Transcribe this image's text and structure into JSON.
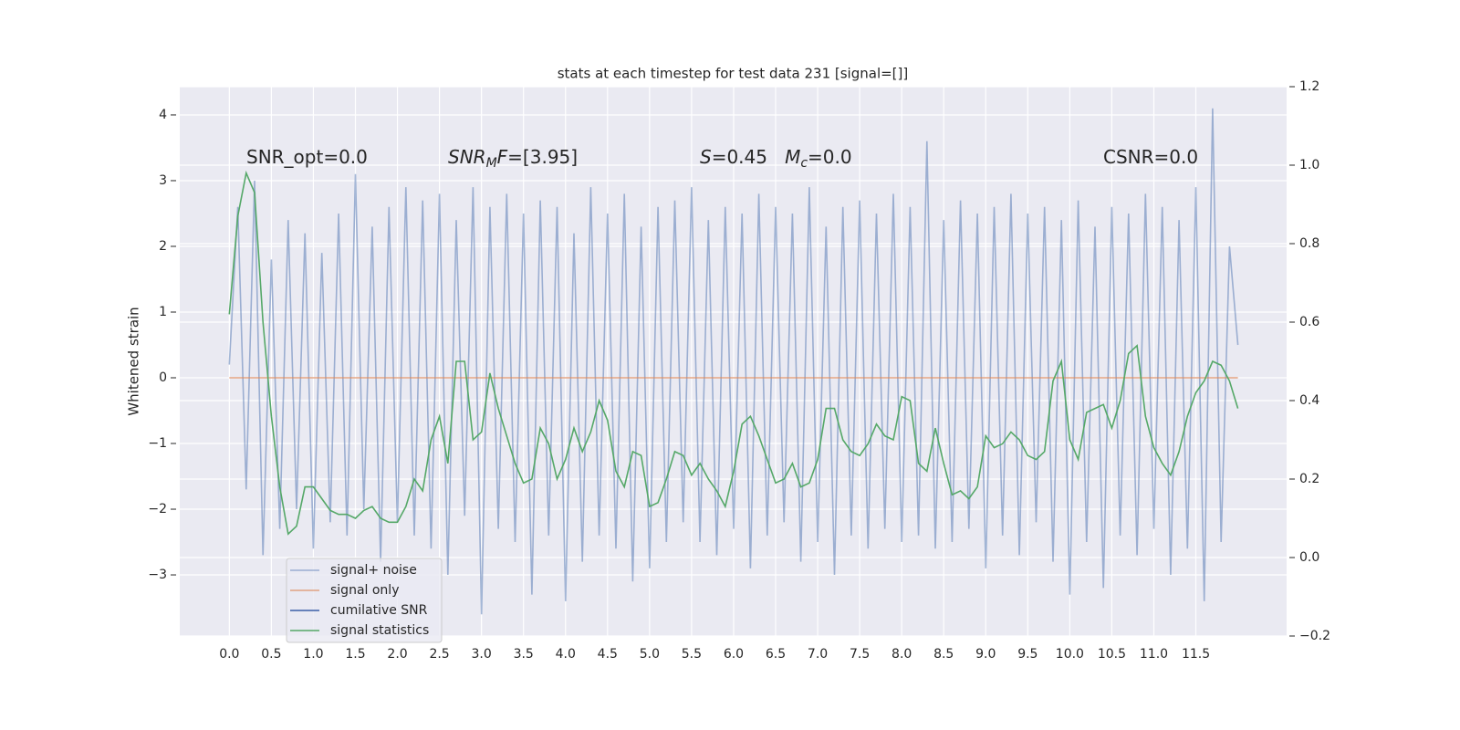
{
  "chart_data": {
    "type": "line",
    "title": "stats at each timestep for test data 231 [signal=[]]",
    "y_label": "Whitened strain",
    "x": [
      0.0,
      0.1,
      0.2,
      0.3,
      0.4,
      0.5,
      0.6,
      0.7,
      0.8,
      0.9,
      1.0,
      1.1,
      1.2,
      1.3,
      1.4,
      1.5,
      1.6,
      1.7,
      1.8,
      1.9,
      2.0,
      2.1,
      2.2,
      2.3,
      2.4,
      2.5,
      2.6,
      2.7,
      2.8,
      2.9,
      3.0,
      3.1,
      3.2,
      3.3,
      3.4,
      3.5,
      3.6,
      3.7,
      3.8,
      3.9,
      4.0,
      4.1,
      4.2,
      4.3,
      4.4,
      4.5,
      4.6,
      4.7,
      4.8,
      4.9,
      5.0,
      5.1,
      5.2,
      5.3,
      5.4,
      5.5,
      5.6,
      5.7,
      5.8,
      5.9,
      6.0,
      6.1,
      6.2,
      6.3,
      6.4,
      6.5,
      6.6,
      6.7,
      6.8,
      6.9,
      7.0,
      7.1,
      7.2,
      7.3,
      7.4,
      7.5,
      7.6,
      7.7,
      7.8,
      7.9,
      8.0,
      8.1,
      8.2,
      8.3,
      8.4,
      8.5,
      8.6,
      8.7,
      8.8,
      8.9,
      9.0,
      9.1,
      9.2,
      9.3,
      9.4,
      9.5,
      9.6,
      9.7,
      9.8,
      9.9,
      10.0,
      10.1,
      10.2,
      10.3,
      10.4,
      10.5,
      10.6,
      10.7,
      10.8,
      10.9,
      11.0,
      11.1,
      11.2,
      11.3,
      11.4,
      11.5,
      11.6,
      11.7,
      11.8,
      11.9,
      12.0
    ],
    "series": [
      {
        "name": "signal+ noise",
        "color": "#4c72b0",
        "alpha": 0.5,
        "axis": "y",
        "values": [
          0.2,
          2.6,
          -1.7,
          3.0,
          -2.7,
          1.8,
          -2.3,
          2.4,
          -2.0,
          2.2,
          -2.6,
          1.9,
          -2.2,
          2.5,
          -2.4,
          3.1,
          -2.0,
          2.3,
          -2.8,
          2.6,
          -2.2,
          2.9,
          -2.4,
          2.7,
          -2.6,
          2.8,
          -3.0,
          2.4,
          -2.1,
          2.9,
          -3.6,
          2.6,
          -2.3,
          2.8,
          -2.5,
          2.5,
          -3.3,
          2.7,
          -2.4,
          2.6,
          -3.4,
          2.2,
          -2.8,
          2.9,
          -2.4,
          2.5,
          -2.6,
          2.8,
          -3.1,
          2.3,
          -2.9,
          2.6,
          -2.5,
          2.7,
          -2.2,
          2.9,
          -2.5,
          2.4,
          -2.7,
          2.6,
          -2.3,
          2.5,
          -2.9,
          2.8,
          -2.4,
          2.6,
          -2.2,
          2.5,
          -2.8,
          2.9,
          -2.5,
          2.3,
          -3.0,
          2.6,
          -2.4,
          2.7,
          -2.6,
          2.5,
          -2.3,
          2.8,
          -2.5,
          2.6,
          -2.4,
          3.6,
          -2.6,
          2.4,
          -2.5,
          2.7,
          -2.3,
          2.5,
          -2.9,
          2.6,
          -2.4,
          2.8,
          -2.7,
          2.5,
          -2.2,
          2.6,
          -2.8,
          2.4,
          -3.3,
          2.7,
          -2.5,
          2.3,
          -3.2,
          2.6,
          -2.4,
          2.5,
          -2.7,
          2.8,
          -2.3,
          2.6,
          -3.0,
          2.4,
          -2.6,
          2.9,
          -3.4,
          4.1,
          -2.5,
          2.0,
          0.5
        ]
      },
      {
        "name": "signal only",
        "color": "#dd8452",
        "alpha": 0.7,
        "axis": "y",
        "x": [
          0.0,
          12.0
        ],
        "values": [
          0,
          0
        ]
      },
      {
        "name": "cumilative SNR",
        "color": "#3b5ea8",
        "alpha": 1,
        "axis": "y2"
      },
      {
        "name": "signal statistics",
        "color": "#55a868",
        "alpha": 1,
        "axis": "y2",
        "values": [
          0.62,
          0.87,
          0.98,
          0.93,
          0.6,
          0.36,
          0.18,
          0.06,
          0.08,
          0.18,
          0.18,
          0.15,
          0.12,
          0.11,
          0.11,
          0.1,
          0.12,
          0.13,
          0.1,
          0.09,
          0.09,
          0.13,
          0.2,
          0.17,
          0.3,
          0.36,
          0.24,
          0.5,
          0.5,
          0.3,
          0.32,
          0.47,
          0.38,
          0.31,
          0.24,
          0.19,
          0.2,
          0.33,
          0.29,
          0.2,
          0.25,
          0.33,
          0.27,
          0.32,
          0.4,
          0.35,
          0.22,
          0.18,
          0.27,
          0.26,
          0.13,
          0.14,
          0.2,
          0.27,
          0.26,
          0.21,
          0.24,
          0.2,
          0.17,
          0.13,
          0.22,
          0.34,
          0.36,
          0.31,
          0.25,
          0.19,
          0.2,
          0.24,
          0.18,
          0.19,
          0.25,
          0.38,
          0.38,
          0.3,
          0.27,
          0.26,
          0.29,
          0.34,
          0.31,
          0.3,
          0.41,
          0.4,
          0.24,
          0.22,
          0.33,
          0.24,
          0.16,
          0.17,
          0.15,
          0.18,
          0.31,
          0.28,
          0.29,
          0.32,
          0.3,
          0.26,
          0.25,
          0.27,
          0.45,
          0.5,
          0.3,
          0.25,
          0.37,
          0.38,
          0.39,
          0.33,
          0.4,
          0.52,
          0.54,
          0.36,
          0.28,
          0.24,
          0.21,
          0.27,
          0.36,
          0.42,
          0.45,
          0.5,
          0.49,
          0.45,
          0.38
        ]
      }
    ],
    "annotations": [
      [
        {
          "t": "SNR_opt=0.0"
        }
      ],
      [
        {
          "t": "SNR",
          "italic": true
        },
        {
          "t": "M",
          "italic": true,
          "sub": true
        },
        {
          "t": "F",
          "italic": true
        },
        {
          "t": "=[3.95]"
        }
      ],
      [
        {
          "t": "S",
          "italic": true
        },
        {
          "t": "=0.45   "
        },
        {
          "t": "M",
          "italic": true
        },
        {
          "t": "c",
          "italic": true,
          "sub": true
        },
        {
          "t": "=0.0"
        }
      ],
      [
        {
          "t": "CSNR=0.0"
        }
      ]
    ],
    "xlim": [
      -0.59,
      12.58
    ],
    "xticks": [
      {
        "value": 0,
        "label": "0.0"
      },
      0.5,
      {
        "value": 1,
        "label": "1.0"
      },
      1.5,
      {
        "value": 2,
        "label": "2.0"
      },
      2.5,
      {
        "value": 3,
        "label": "3.0"
      },
      3.5,
      {
        "value": 4,
        "label": "4.0"
      },
      4.5,
      {
        "value": 5,
        "label": "5.0"
      },
      5.5,
      {
        "value": 6,
        "label": "6.0"
      },
      6.5,
      {
        "value": 7,
        "label": "7.0"
      },
      7.5,
      {
        "value": 8,
        "label": "8.0"
      },
      8.5,
      {
        "value": 9,
        "label": "9.0"
      },
      9.5,
      {
        "value": 10,
        "label": "10.0"
      },
      10.5,
      {
        "value": 11,
        "label": "11.0"
      },
      11.5
    ],
    "ylim": [
      -3.93,
      4.43
    ],
    "yticks": [
      {
        "value": -3,
        "label": "−3"
      },
      {
        "value": -2,
        "label": "−2"
      },
      {
        "value": -1,
        "label": "−1"
      },
      0,
      1,
      2,
      3,
      4
    ],
    "y2lim": [
      -0.2,
      1.2
    ],
    "y2ticks": [
      {
        "value": -0.2,
        "label": "−0.2"
      },
      {
        "value": 0,
        "label": "0.0"
      },
      0.2,
      0.4,
      0.6,
      0.8,
      {
        "value": 1,
        "label": "1.0"
      },
      1.2
    ],
    "grid": true,
    "legend": "lower left"
  }
}
